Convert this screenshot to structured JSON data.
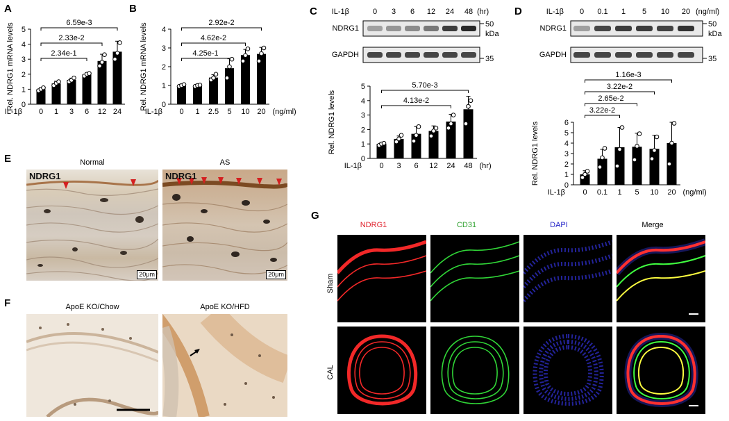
{
  "panels": {
    "A": "A",
    "B": "B",
    "C": "C",
    "D": "D",
    "E": "E",
    "F": "F",
    "G": "G"
  },
  "chart_data": [
    {
      "id": "A",
      "type": "bar",
      "ylabel": "Rel. NDRG1 mRNA levels",
      "xlabel_prefix": "IL-1β",
      "xunit": "(hr)",
      "categories": [
        "0",
        "1",
        "3",
        "6",
        "12",
        "24"
      ],
      "values": [
        1.0,
        1.38,
        1.62,
        1.98,
        2.88,
        3.5
      ],
      "errors": [
        0.1,
        0.15,
        0.12,
        0.1,
        0.45,
        0.7
      ],
      "points": [
        [
          0.9,
          1.0,
          1.1
        ],
        [
          1.25,
          1.4,
          1.5
        ],
        [
          1.5,
          1.6,
          1.75
        ],
        [
          1.88,
          2.0,
          2.05
        ],
        [
          2.55,
          2.8,
          3.3
        ],
        [
          3.0,
          3.4,
          4.1
        ]
      ],
      "ylim": [
        0,
        5
      ],
      "yticks": [
        "0",
        "1",
        "2",
        "3",
        "4",
        "5"
      ],
      "comparisons": [
        {
          "from": 0,
          "to": 3,
          "label": "2.34e-1"
        },
        {
          "from": 0,
          "to": 4,
          "label": "2.33e-2"
        },
        {
          "from": 0,
          "to": 5,
          "label": "6.59e-3"
        }
      ]
    },
    {
      "id": "B",
      "type": "bar",
      "ylabel": "Rel. NDRG1 mRNA levels",
      "xlabel_prefix": "IL-1β",
      "xunit": "(ng/ml)",
      "categories": [
        "0",
        "1",
        "2.5",
        "5",
        "10",
        "20"
      ],
      "values": [
        1.0,
        1.0,
        1.42,
        1.92,
        2.62,
        2.68
      ],
      "errors": [
        0.07,
        0.07,
        0.15,
        0.5,
        0.3,
        0.35
      ],
      "points": [
        [
          0.95,
          1.0,
          1.05
        ],
        [
          0.95,
          1.0,
          1.02
        ],
        [
          1.3,
          1.4,
          1.6
        ],
        [
          1.4,
          2.0,
          2.4
        ],
        [
          2.3,
          2.6,
          2.95
        ],
        [
          2.3,
          2.7,
          3.0
        ]
      ],
      "ylim": [
        0,
        4
      ],
      "yticks": [
        "0",
        "1",
        "2",
        "3",
        "4"
      ],
      "comparisons": [
        {
          "from": 0,
          "to": 3,
          "label": "4.25e-1"
        },
        {
          "from": 0,
          "to": 4,
          "label": "4.62e-2"
        },
        {
          "from": 0,
          "to": 5,
          "label": "2.92e-2"
        }
      ]
    },
    {
      "id": "C",
      "type": "bar",
      "ylabel": "Rel. NDRG1 levels",
      "xlabel_prefix": "IL-1β",
      "xunit": "(hr)",
      "categories": [
        "0",
        "3",
        "6",
        "12",
        "24",
        "48"
      ],
      "values": [
        1.0,
        1.35,
        1.7,
        1.9,
        2.55,
        3.4
      ],
      "errors": [
        0.1,
        0.2,
        0.5,
        0.35,
        0.5,
        0.9
      ],
      "points": [
        [
          0.9,
          1.0,
          1.05
        ],
        [
          1.15,
          1.35,
          1.6
        ],
        [
          1.2,
          1.6,
          2.2
        ],
        [
          1.55,
          1.9,
          2.1
        ],
        [
          2.1,
          2.4,
          3.0
        ],
        [
          2.4,
          3.6,
          4.0
        ]
      ],
      "ylim": [
        0,
        5
      ],
      "yticks": [
        "0",
        "1",
        "2",
        "3",
        "4",
        "5"
      ],
      "comparisons": [
        {
          "from": 0,
          "to": 4,
          "label": "4.13e-2"
        },
        {
          "from": 0,
          "to": 5,
          "label": "5.70e-3"
        }
      ]
    },
    {
      "id": "D",
      "type": "bar",
      "ylabel": "Rel. NDRG1 levels",
      "xlabel_prefix": "IL-1β",
      "xunit": "(ng/ml)",
      "categories": [
        "0",
        "0.1",
        "1",
        "5",
        "10",
        "20"
      ],
      "values": [
        1.0,
        2.5,
        3.6,
        3.65,
        3.45,
        4.0
      ],
      "errors": [
        0.35,
        0.9,
        1.9,
        1.3,
        1.3,
        2.0
      ],
      "points": [
        [
          0.7,
          1.0,
          1.3
        ],
        [
          1.7,
          2.6,
          3.5
        ],
        [
          1.8,
          3.4,
          5.5
        ],
        [
          2.4,
          3.7,
          4.9
        ],
        [
          2.5,
          3.3,
          4.6
        ],
        [
          2.0,
          4.0,
          5.9
        ]
      ],
      "ylim": [
        0,
        6
      ],
      "yticks": [
        "0",
        "1",
        "2",
        "3",
        "4",
        "5",
        "6"
      ],
      "comparisons": [
        {
          "from": 0,
          "to": 2,
          "label": "3.22e-2"
        },
        {
          "from": 0,
          "to": 3,
          "label": "2.65e-2"
        },
        {
          "from": 0,
          "to": 4,
          "label": "3.22e-2"
        },
        {
          "from": 0,
          "to": 5,
          "label": "1.16e-3"
        }
      ]
    }
  ],
  "blotC": {
    "treatment": "IL-1β",
    "lanes": [
      "0",
      "3",
      "6",
      "12",
      "24",
      "48"
    ],
    "unit": "(hr)",
    "rows": [
      "NDRG1",
      "GAPDH"
    ],
    "marker_top": "50",
    "marker_top_unit": "kDa",
    "marker_bottom": "35"
  },
  "blotD": {
    "treatment": "IL-1β",
    "lanes": [
      "0",
      "0.1",
      "1",
      "5",
      "10",
      "20"
    ],
    "unit": "(ng/ml)",
    "rows": [
      "NDRG1",
      "GAPDH"
    ],
    "marker_top": "50",
    "marker_top_unit": "kDa",
    "marker_bottom": "35"
  },
  "panelE": {
    "titles": [
      "Normal",
      "AS"
    ],
    "tag": "NDRG1",
    "scale": "20μm"
  },
  "panelF": {
    "titles": [
      "ApoE KO/Chow",
      "ApoE KO/HFD"
    ]
  },
  "panelG": {
    "channels": [
      "NDRG1",
      "CD31",
      "DAPI",
      "Merge"
    ],
    "channel_colors": [
      "#e0202b",
      "#2ca02c",
      "#2323c8",
      "#000000"
    ],
    "rows": [
      "Sham",
      "CAL"
    ]
  }
}
